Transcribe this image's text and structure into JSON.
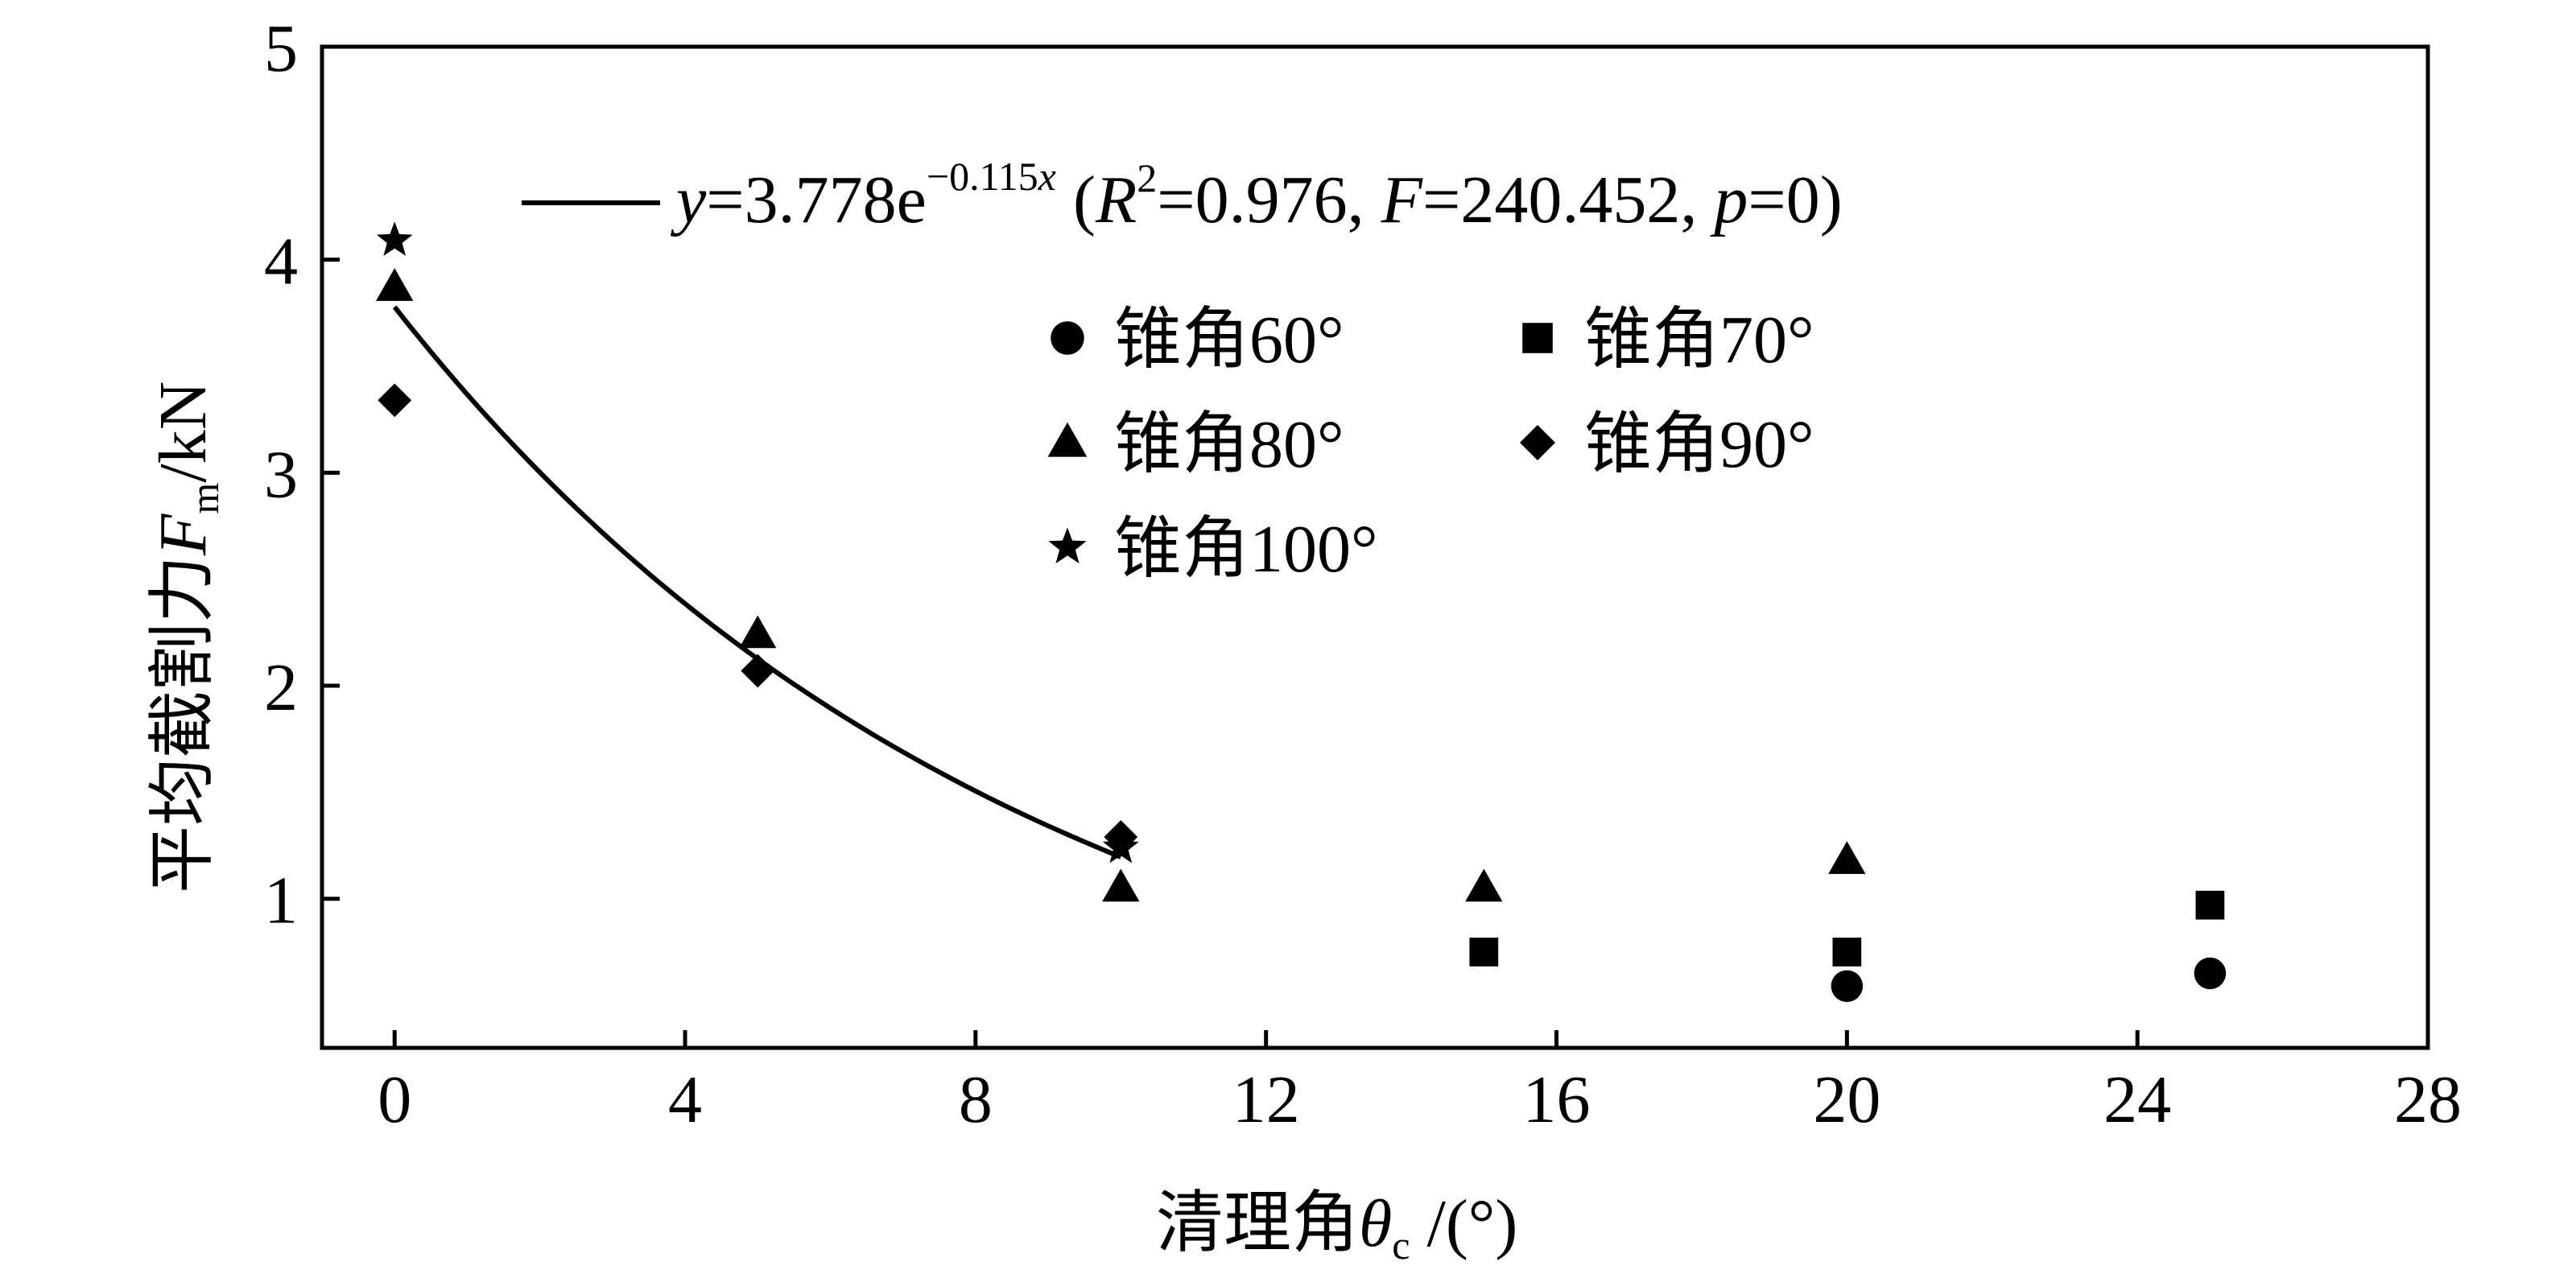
{
  "chart_data": {
    "type": "scatter",
    "xlabel": {
      "prefix": "清理角",
      "symbol": "θ",
      "sub": "c",
      "suffix": " /(°)"
    },
    "ylabel": {
      "prefix": "平均截割力",
      "symbol": "F",
      "sub": "m",
      "suffix": "/kN"
    },
    "xlim": [
      -1,
      28
    ],
    "ylim": [
      0.3,
      5
    ],
    "xticks": [
      0,
      4,
      8,
      12,
      16,
      20,
      24,
      28
    ],
    "yticks": [
      1,
      2,
      3,
      4,
      5
    ],
    "grid": false,
    "legend_position": "top-center",
    "series": [
      {
        "name": "锥角60°",
        "marker": "circle",
        "points": [
          [
            20,
            0.59
          ],
          [
            25,
            0.65
          ]
        ]
      },
      {
        "name": "锥角70°",
        "marker": "square",
        "points": [
          [
            15,
            0.75
          ],
          [
            20,
            0.75
          ],
          [
            25,
            0.97
          ]
        ]
      },
      {
        "name": "锥角80°",
        "marker": "triangle",
        "points": [
          [
            0,
            3.87
          ],
          [
            5,
            2.24
          ],
          [
            10,
            1.05
          ],
          [
            15,
            1.05
          ],
          [
            20,
            1.18
          ]
        ]
      },
      {
        "name": "锥角90°",
        "marker": "diamond",
        "points": [
          [
            0,
            3.34
          ],
          [
            5,
            2.07
          ],
          [
            10,
            1.29
          ]
        ]
      },
      {
        "name": "锥角100°",
        "marker": "star",
        "points": [
          [
            0,
            4.09
          ],
          [
            10,
            1.24
          ]
        ]
      }
    ],
    "fit": {
      "a": 3.778,
      "b": -0.115,
      "x_range": [
        0,
        10
      ],
      "equation": {
        "y": "y",
        "eq_coef": "=3.778e",
        "exp": "−0.115",
        "exp_var": "x",
        "open": " (",
        "r": "R",
        "r_sup": "2",
        "r_val": "=0.976, ",
        "f": "F",
        "f_val": "=240.452, ",
        "p": "p",
        "p_val": "=0)"
      }
    }
  }
}
